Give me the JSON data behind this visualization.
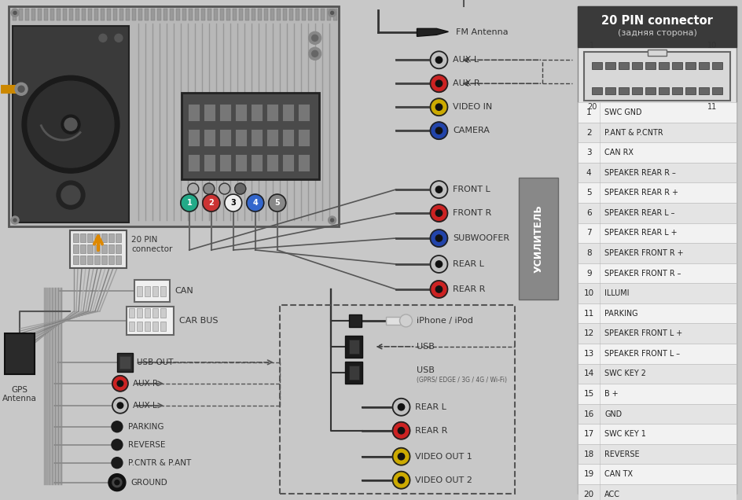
{
  "bg_color": "#c8c8c8",
  "right_panel_bg": "#e8e8e8",
  "title_box_color": "#404040",
  "title_text": "20 PIN connector",
  "subtitle_text": "(задняя сторона)",
  "pin_table": [
    [
      1,
      "SWC GND"
    ],
    [
      2,
      "P.ANT & P.CNTR"
    ],
    [
      3,
      "CAN RX"
    ],
    [
      4,
      "SPEAKER REAR R –"
    ],
    [
      5,
      "SPEAKER REAR R +"
    ],
    [
      6,
      "SPEAKER REAR L –"
    ],
    [
      7,
      "SPEAKER REAR L +"
    ],
    [
      8,
      "SPEAKER FRONT R +"
    ],
    [
      9,
      "SPEAKER FRONT R –"
    ],
    [
      10,
      "ILLUMI"
    ],
    [
      11,
      "PARKING"
    ],
    [
      12,
      "SPEAKER FRONT L +"
    ],
    [
      13,
      "SPEAKER FRONT L –"
    ],
    [
      14,
      "SWC KEY 2"
    ],
    [
      15,
      "B +"
    ],
    [
      16,
      "GND"
    ],
    [
      17,
      "SWC KEY 1"
    ],
    [
      18,
      "REVERSE"
    ],
    [
      19,
      "CAN TX"
    ],
    [
      20,
      "ACC"
    ]
  ],
  "rca_right_labels": [
    "AUX L",
    "AUX R",
    "VIDEO IN",
    "CAMERA",
    "FRONT L",
    "FRONT R",
    "SUBWOOFER",
    "REAR L",
    "REAR R"
  ],
  "rca_right_colors": [
    "#c0c0c0",
    "#cc2222",
    "#ccaa00",
    "#2244aa",
    "#c0c0c0",
    "#cc2222",
    "#2244aa",
    "#c0c0c0",
    "#cc2222"
  ],
  "rca_bottom_labels": [
    "REAR L",
    "REAR R",
    "VIDEO OUT 1",
    "VIDEO OUT 2"
  ],
  "rca_bottom_colors": [
    "#c0c0c0",
    "#cc2222",
    "#ccaa00",
    "#ccaa00"
  ],
  "amplifier_label": "УСИЛИТЕЛЬ",
  "gps_label": "GPS\nAntenna",
  "pin_colors_5": [
    "#22aa88",
    "#cc3333",
    "#eeeeee",
    "#3366cc",
    "#888888"
  ]
}
